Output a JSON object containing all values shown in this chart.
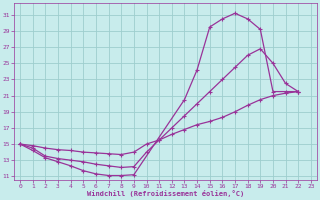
{
  "xlabel": "Windchill (Refroidissement éolien,°C)",
  "xlim": [
    -0.5,
    23.5
  ],
  "ylim": [
    10.5,
    32.5
  ],
  "yticks": [
    11,
    13,
    15,
    17,
    19,
    21,
    23,
    25,
    27,
    29,
    31
  ],
  "xticks": [
    0,
    1,
    2,
    3,
    4,
    5,
    6,
    7,
    8,
    9,
    10,
    11,
    12,
    13,
    14,
    15,
    16,
    17,
    18,
    19,
    20,
    21,
    22,
    23
  ],
  "bg_color": "#c8ecec",
  "grid_color": "#9ecece",
  "line_color": "#993399",
  "curve1_x": [
    0,
    1,
    2,
    3,
    4,
    5,
    6,
    7,
    8,
    9,
    13,
    14,
    15,
    16,
    17,
    18,
    19,
    20,
    21,
    22
  ],
  "curve1_y": [
    15,
    14.2,
    13.3,
    12.8,
    12.3,
    11.7,
    11.3,
    11.1,
    11.1,
    11.2,
    20.5,
    24.2,
    29.5,
    30.5,
    31.2,
    30.5,
    29.2,
    21.5,
    21.5,
    21.5
  ],
  "curve2_x": [
    0,
    1,
    2,
    3,
    4,
    5,
    6,
    7,
    8,
    9,
    10,
    11,
    12,
    13,
    14,
    15,
    16,
    17,
    18,
    19,
    20,
    21,
    22
  ],
  "curve2_y": [
    15,
    14.5,
    13.5,
    13.2,
    13.0,
    12.8,
    12.5,
    12.3,
    12.1,
    12.2,
    14.0,
    15.5,
    17.0,
    18.5,
    20.0,
    21.5,
    23.0,
    24.5,
    26.0,
    26.8,
    25.0,
    22.5,
    21.5
  ],
  "curve3_x": [
    0,
    1,
    2,
    3,
    4,
    5,
    6,
    7,
    8,
    9,
    10,
    11,
    12,
    13,
    14,
    15,
    16,
    17,
    18,
    19,
    20,
    21,
    22
  ],
  "curve3_y": [
    15,
    14.8,
    14.5,
    14.3,
    14.2,
    14.0,
    13.9,
    13.8,
    13.7,
    14.0,
    15.0,
    15.5,
    16.2,
    16.8,
    17.4,
    17.8,
    18.3,
    19.0,
    19.8,
    20.5,
    21.0,
    21.3,
    21.5
  ]
}
